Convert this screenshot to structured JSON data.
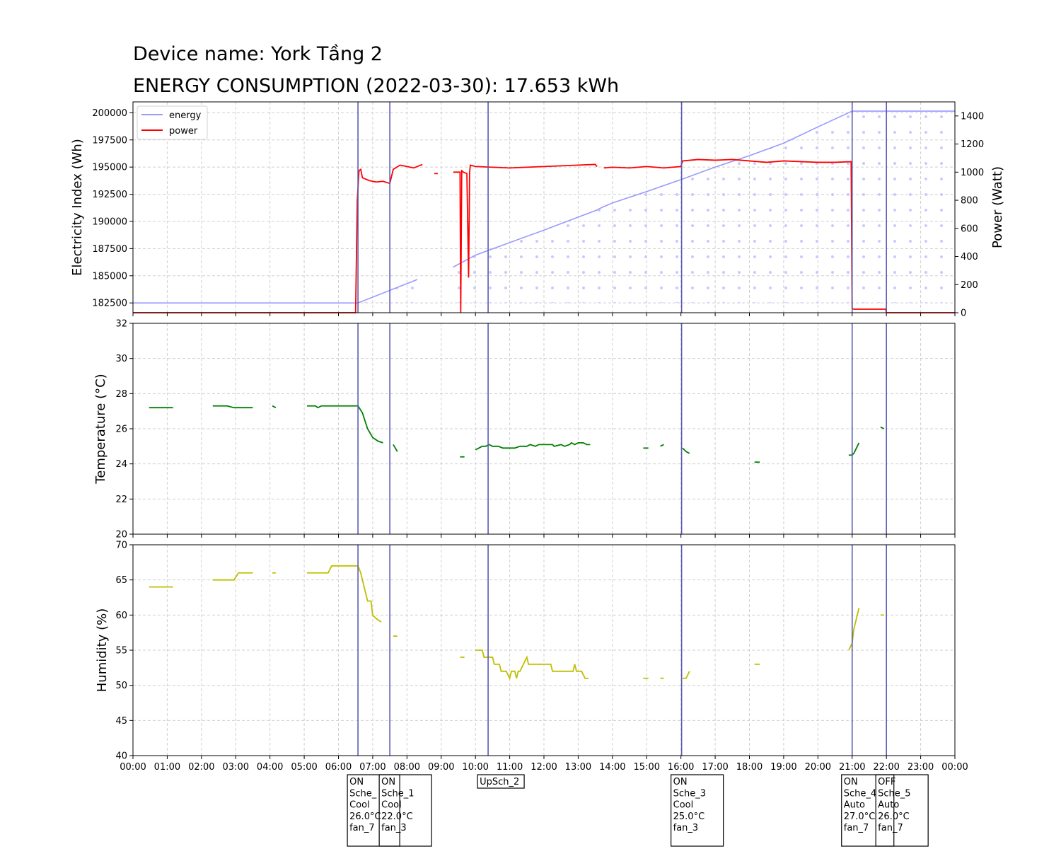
{
  "header": {
    "device": "Device name: York Tầng 2",
    "energy": "ENERGY CONSUMPTION (2022-03-30): 17.653 kWh"
  },
  "colors": {
    "energy": "#9999ff",
    "power": "#ff0000",
    "temperature": "#008000",
    "humidity": "#bfbf00",
    "event_line": "#5b5bb5"
  },
  "chart_data": [
    {
      "type": "line",
      "panel": "energy-power",
      "ylabel": "Electricity Index (Wh)",
      "y2label": "Power (Watt)",
      "ylim": [
        181600,
        201000
      ],
      "yticks": [
        182500,
        185000,
        187500,
        190000,
        192500,
        195000,
        197500,
        200000
      ],
      "y2lim": [
        0,
        1500
      ],
      "y2ticks": [
        0,
        200,
        400,
        600,
        800,
        1000,
        1200,
        1400
      ],
      "xlim": [
        0,
        24
      ],
      "legend": [
        "energy",
        "power"
      ],
      "legend_loc": "upper-left",
      "fill_pattern": "dots under energy curve",
      "series": [
        {
          "name": "energy",
          "unit": "Wh",
          "x": [
            0,
            6.57,
            8.3,
            8.35,
            8.7,
            8.8,
            9.3,
            9.35,
            10.0,
            11.0,
            12.0,
            13.0,
            13.55,
            13.7,
            14.0,
            15.0,
            16.0,
            17.0,
            18.0,
            19.0,
            20.0,
            21.0,
            22.0,
            24.0
          ],
          "y": [
            182500,
            182500,
            184650,
            null,
            null,
            185100,
            null,
            185800,
            186900,
            188050,
            189200,
            190400,
            191050,
            191300,
            191700,
            192750,
            193850,
            195000,
            196050,
            197200,
            198700,
            200150,
            200150,
            200150
          ]
        },
        {
          "name": "power",
          "unit": "W",
          "x": [
            0,
            6.5,
            6.55,
            6.6,
            6.65,
            6.7,
            6.9,
            7.1,
            7.3,
            7.5,
            7.6,
            7.8,
            8.0,
            8.2,
            8.45,
            null,
            8.8,
            8.9,
            null,
            9.35,
            9.55,
            9.57,
            9.6,
            9.65,
            9.75,
            9.8,
            9.83,
            9.85,
            10.0,
            10.5,
            11.0,
            11.5,
            12.0,
            12.5,
            13.0,
            13.5,
            13.55,
            null,
            13.75,
            14.0,
            14.5,
            15.0,
            15.5,
            16.0,
            16.05,
            16.5,
            17.0,
            17.5,
            18.0,
            18.5,
            19.0,
            19.5,
            20.0,
            20.5,
            20.97,
            21.0,
            21.05,
            21.98,
            22.0,
            24.0
          ],
          "y": [
            0,
            0,
            800,
            1010,
            1020,
            960,
            940,
            930,
            935,
            920,
            1020,
            1050,
            1040,
            1030,
            1055,
            null,
            990,
            990,
            null,
            1000,
            1000,
            0,
            1010,
            1000,
            990,
            250,
            1000,
            1050,
            1040,
            1035,
            1030,
            1035,
            1040,
            1045,
            1050,
            1055,
            1040,
            null,
            1030,
            1035,
            1030,
            1040,
            1030,
            1040,
            1080,
            1090,
            1085,
            1090,
            1080,
            1070,
            1080,
            1075,
            1070,
            1070,
            1075,
            30,
            25,
            25,
            0,
            0
          ]
        }
      ],
      "events": [
        {
          "x": 6.57,
          "label": [
            "ON",
            "Sche_",
            "Cool",
            "26.0°C",
            "fan_7"
          ]
        },
        {
          "x": 7.5,
          "label": [
            "ON",
            "Sche_1",
            "Cool",
            "22.0°C",
            "fan_3"
          ]
        },
        {
          "x": 10.37,
          "label": [
            "UpSch_2"
          ]
        },
        {
          "x": 16.02,
          "label": [
            "ON",
            "Sche_3",
            "Cool",
            "25.0°C",
            "fan_3"
          ]
        },
        {
          "x": 21.0,
          "label": [
            "ON",
            "Sche_4",
            "Auto",
            "27.0°C",
            "fan_7"
          ]
        },
        {
          "x": 22.0,
          "label": [
            "OFF",
            "Sche_5",
            "Auto",
            "26.0°C",
            "fan_7"
          ]
        }
      ]
    },
    {
      "type": "line",
      "panel": "temperature",
      "ylabel": "Temperature ($^{\\circ}$C)",
      "ylabel_display": "Temperature (°C)",
      "ylim": [
        20,
        32
      ],
      "yticks": [
        20,
        22,
        24,
        26,
        28,
        30,
        32
      ],
      "xlim": [
        0,
        24
      ],
      "series": [
        {
          "name": "temperature",
          "segments": [
            {
              "x": [
                0.47,
                1.17
              ],
              "y": [
                27.2,
                27.2
              ]
            },
            {
              "x": [
                2.33,
                2.75,
                2.95,
                3.5
              ],
              "y": [
                27.3,
                27.3,
                27.2,
                27.2
              ]
            },
            {
              "x": [
                4.07,
                4.17
              ],
              "y": [
                27.3,
                27.2
              ]
            },
            {
              "x": [
                5.08,
                5.33,
                5.4,
                5.5,
                5.7,
                6.57,
                6.7,
                6.85,
                7.0,
                7.15,
                7.3
              ],
              "y": [
                27.3,
                27.3,
                27.2,
                27.3,
                27.3,
                27.3,
                26.9,
                26.0,
                25.5,
                25.3,
                25.2
              ]
            },
            {
              "x": [
                7.6,
                7.72
              ],
              "y": [
                25.1,
                24.7
              ]
            },
            {
              "x": [
                9.55,
                9.68
              ],
              "y": [
                24.4,
                24.4
              ]
            },
            {
              "x": [
                10.0,
                10.2,
                10.3,
                10.4,
                10.5,
                10.67,
                10.8,
                11.0,
                11.05,
                11.15,
                11.3,
                11.5,
                11.6,
                11.75,
                11.85,
                12.0,
                12.15,
                12.25,
                12.3,
                12.5,
                12.6,
                12.75,
                12.8,
                12.9,
                13.0,
                13.15,
                13.25,
                13.35
              ],
              "y": [
                24.8,
                25.0,
                25.0,
                25.1,
                25.0,
                25.0,
                24.9,
                24.9,
                24.9,
                24.9,
                25.0,
                25.0,
                25.1,
                25.0,
                25.1,
                25.1,
                25.1,
                25.1,
                25.0,
                25.1,
                25.0,
                25.1,
                25.2,
                25.1,
                25.2,
                25.2,
                25.1,
                25.1
              ]
            },
            {
              "x": [
                14.9,
                15.05
              ],
              "y": [
                24.9,
                24.9
              ]
            },
            {
              "x": [
                15.4,
                15.5
              ],
              "y": [
                25.0,
                25.1
              ]
            },
            {
              "x": [
                16.05,
                16.15,
                16.25
              ],
              "y": [
                24.9,
                24.7,
                24.6
              ]
            },
            {
              "x": [
                18.15,
                18.3
              ],
              "y": [
                24.1,
                24.1
              ]
            },
            {
              "x": [
                20.9,
                21.0,
                21.05,
                21.1,
                21.2
              ],
              "y": [
                24.5,
                24.5,
                24.6,
                24.8,
                25.2
              ]
            },
            {
              "x": [
                21.83,
                21.93
              ],
              "y": [
                26.1,
                26.0
              ]
            }
          ]
        }
      ]
    },
    {
      "type": "line",
      "panel": "humidity",
      "ylabel": "Humidity (%)",
      "ylim": [
        40,
        70
      ],
      "yticks": [
        40,
        45,
        50,
        55,
        60,
        65,
        70
      ],
      "xlim": [
        0,
        24
      ],
      "xticks": [
        "00:00",
        "01:00",
        "02:00",
        "03:00",
        "04:00",
        "05:00",
        "06:00",
        "07:00",
        "08:00",
        "09:00",
        "10:00",
        "11:00",
        "12:00",
        "13:00",
        "14:00",
        "15:00",
        "16:00",
        "17:00",
        "18:00",
        "19:00",
        "20:00",
        "21:00",
        "22:00",
        "23:00",
        "00:00"
      ],
      "series": [
        {
          "name": "humidity",
          "segments": [
            {
              "x": [
                0.47,
                1.17
              ],
              "y": [
                64,
                64
              ]
            },
            {
              "x": [
                2.33,
                2.95,
                3.08,
                3.5
              ],
              "y": [
                65,
                65,
                66,
                66
              ]
            },
            {
              "x": [
                4.07,
                4.17
              ],
              "y": [
                66,
                66
              ]
            },
            {
              "x": [
                5.08,
                5.7,
                5.8,
                6.57,
                6.65,
                6.75,
                6.85,
                6.95,
                7.0,
                7.1,
                7.25
              ],
              "y": [
                66,
                66,
                67,
                67,
                66,
                64,
                62,
                62,
                60,
                59.5,
                59
              ]
            },
            {
              "x": [
                7.6,
                7.72
              ],
              "y": [
                57,
                57
              ]
            },
            {
              "x": [
                9.55,
                9.68
              ],
              "y": [
                54,
                54
              ]
            },
            {
              "x": [
                10.0,
                10.2,
                10.25,
                10.5,
                10.55,
                10.7,
                10.75,
                10.9,
                11.0,
                11.05,
                11.15,
                11.2,
                11.25,
                11.3,
                11.4,
                11.5,
                11.55,
                11.6,
                11.8,
                12.0,
                12.2,
                12.25,
                12.5,
                12.85,
                12.9,
                12.95,
                13.1,
                13.2,
                13.3
              ],
              "y": [
                55,
                55,
                54,
                54,
                53,
                53,
                52,
                52,
                51,
                52,
                52,
                51,
                52,
                52,
                53,
                54,
                53,
                53,
                53,
                53,
                53,
                52,
                52,
                52,
                53,
                52,
                52,
                51,
                51
              ]
            },
            {
              "x": [
                14.9,
                15.05
              ],
              "y": [
                51,
                51
              ]
            },
            {
              "x": [
                15.4,
                15.5
              ],
              "y": [
                51,
                51
              ]
            },
            {
              "x": [
                16.05,
                16.15,
                16.25
              ],
              "y": [
                51,
                51,
                52
              ]
            },
            {
              "x": [
                18.15,
                18.3
              ],
              "y": [
                53,
                53
              ]
            },
            {
              "x": [
                20.9,
                21.0,
                21.05,
                21.1,
                21.2
              ],
              "y": [
                55,
                56,
                58,
                59,
                61
              ]
            },
            {
              "x": [
                21.83,
                21.93
              ],
              "y": [
                60,
                60
              ]
            }
          ]
        }
      ]
    }
  ]
}
